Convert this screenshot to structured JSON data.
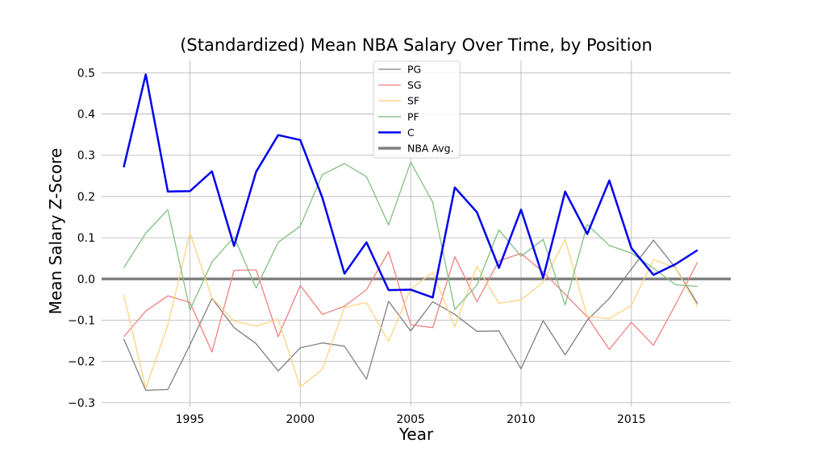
{
  "chart_data": {
    "type": "line",
    "title": "(Standardized) Mean NBA Salary Over Time, by Position",
    "xlabel": "Year",
    "ylabel": "Mean Salary Z-Score",
    "xlim": [
      1991,
      2019.5
    ],
    "ylim": [
      -0.31,
      0.53
    ],
    "xticks": [
      1995,
      2000,
      2005,
      2010,
      2015
    ],
    "yticks": [
      0.5,
      0.4,
      0.3,
      0.2,
      0.1,
      0.0,
      -0.1,
      -0.2,
      -0.3
    ],
    "ytick_labels": [
      "0.5",
      "0.4",
      "0.3",
      "0.2",
      "0.1",
      "0.0",
      "−0.1",
      "−0.2",
      "−0.3"
    ],
    "grid": true,
    "legend_position": "top-center",
    "x": [
      1992,
      1993,
      1994,
      1995,
      1996,
      1997,
      1998,
      1999,
      2000,
      2001,
      2002,
      2003,
      2004,
      2005,
      2006,
      2007,
      2008,
      2009,
      2010,
      2011,
      2012,
      2013,
      2014,
      2015,
      2016,
      2017,
      2018
    ],
    "series": [
      {
        "name": "PG",
        "color": "#808080",
        "width": 1.3,
        "alpha": 1,
        "values": [
          -0.145,
          -0.27,
          -0.268,
          -0.16,
          -0.047,
          -0.118,
          -0.157,
          -0.223,
          -0.167,
          -0.155,
          -0.163,
          -0.243,
          -0.054,
          -0.126,
          -0.055,
          -0.086,
          -0.127,
          -0.126,
          -0.218,
          -0.101,
          -0.184,
          -0.1,
          -0.047,
          0.024,
          0.094,
          0.027,
          -0.06
        ]
      },
      {
        "name": "SG",
        "color": "#f08080",
        "width": 1.3,
        "alpha": 1,
        "values": [
          -0.14,
          -0.078,
          -0.041,
          -0.057,
          -0.177,
          0.021,
          0.022,
          -0.14,
          -0.016,
          -0.086,
          -0.066,
          -0.026,
          0.066,
          -0.111,
          -0.118,
          0.054,
          -0.055,
          0.044,
          0.062,
          0.017,
          -0.037,
          -0.092,
          -0.171,
          -0.105,
          -0.161,
          -0.062,
          0.041
        ]
      },
      {
        "name": "SF",
        "color": "#ffd27f",
        "width": 1.3,
        "alpha": 1,
        "values": [
          -0.038,
          -0.265,
          -0.112,
          0.112,
          -0.046,
          -0.102,
          -0.114,
          -0.098,
          -0.262,
          -0.219,
          -0.069,
          -0.057,
          -0.151,
          -0.025,
          0.016,
          -0.116,
          0.031,
          -0.059,
          -0.051,
          -0.008,
          0.096,
          -0.091,
          -0.096,
          -0.064,
          0.047,
          0.027,
          -0.067
        ]
      },
      {
        "name": "PF",
        "color": "#80c080",
        "width": 1.3,
        "alpha": 1,
        "values": [
          0.027,
          0.111,
          0.168,
          -0.075,
          0.041,
          0.102,
          -0.022,
          0.089,
          0.128,
          0.253,
          0.28,
          0.248,
          0.131,
          0.283,
          0.186,
          -0.074,
          -0.015,
          0.119,
          0.055,
          0.096,
          -0.063,
          0.132,
          0.081,
          0.063,
          0.026,
          -0.014,
          -0.018
        ]
      },
      {
        "name": "C",
        "color": "#0000ee",
        "width": 2.5,
        "alpha": 1,
        "values": [
          0.271,
          0.496,
          0.212,
          0.213,
          0.261,
          0.08,
          0.26,
          0.349,
          0.337,
          0.197,
          0.013,
          0.089,
          -0.027,
          -0.026,
          -0.045,
          0.222,
          0.162,
          0.027,
          0.168,
          0.003,
          0.212,
          0.109,
          0.239,
          0.075,
          0.01,
          0.036,
          0.07
        ]
      }
    ],
    "reference_line": {
      "name": "NBA Avg.",
      "value": 0.0,
      "color": "#808080",
      "width": 3.5
    }
  }
}
